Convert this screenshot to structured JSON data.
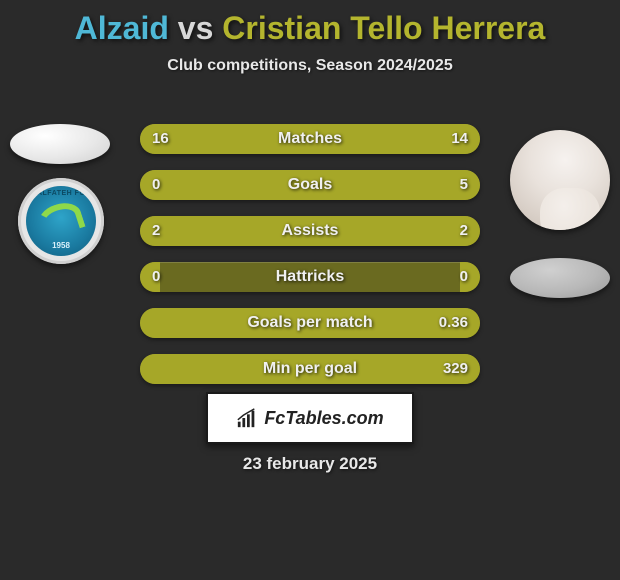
{
  "title": {
    "player1": "Alzaid",
    "vs": "vs",
    "player2": "Cristian Tello Herrera",
    "color1": "#4fb8d6",
    "color_vs": "#d8d8d8",
    "color2": "#b4b52e"
  },
  "subtitle": "Club competitions, Season 2024/2025",
  "date": "23 february 2025",
  "logo_text": "FcTables.com",
  "club_left": {
    "name": "ALFATEH FC",
    "year": "1958"
  },
  "bars": {
    "track_color": "#6a6a20",
    "left_color": "#a6a728",
    "right_color": "#a6a728",
    "rows": [
      {
        "label": "Matches",
        "left": "16",
        "right": "14",
        "lw": 53,
        "rw": 47
      },
      {
        "label": "Goals",
        "left": "0",
        "right": "5",
        "lw": 6,
        "rw": 94
      },
      {
        "label": "Assists",
        "left": "2",
        "right": "2",
        "lw": 50,
        "rw": 50
      },
      {
        "label": "Hattricks",
        "left": "0",
        "right": "0",
        "lw": 6,
        "rw": 6
      },
      {
        "label": "Goals per match",
        "left": "",
        "right": "0.36",
        "lw": 6,
        "rw": 94
      },
      {
        "label": "Min per goal",
        "left": "",
        "right": "329",
        "lw": 6,
        "rw": 94
      }
    ]
  }
}
